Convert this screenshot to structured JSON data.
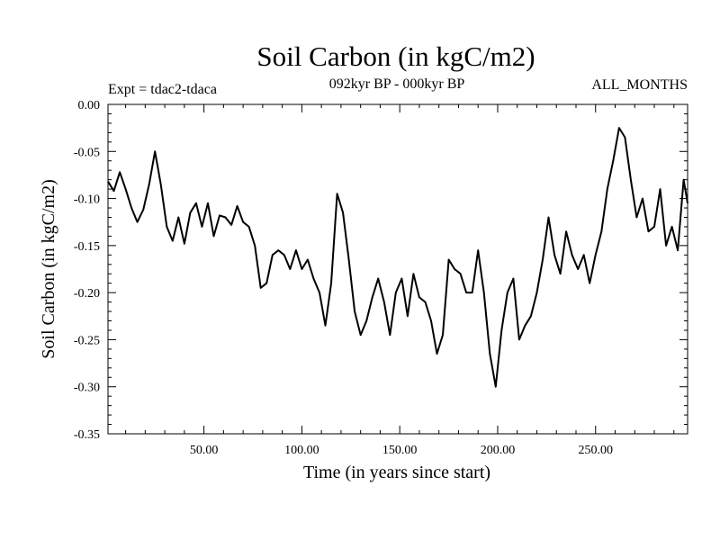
{
  "chart_data": {
    "type": "line",
    "title": "Soil Carbon (in kgC/m2)",
    "subtitle": "092kyr BP - 000kyr BP",
    "left_note": "Expt = tdac2-tdaca",
    "right_note": "ALL_MONTHS",
    "xlabel": "Time (in years since start)",
    "ylabel": "Soil Carbon (in kgC/m2)",
    "xlim": [
      1,
      297
    ],
    "ylim": [
      -0.35,
      0.0
    ],
    "x_ticks": [
      50,
      100,
      150,
      200,
      250
    ],
    "x_tick_labels": [
      "50.00",
      "100.00",
      "150.00",
      "200.00",
      "250.00"
    ],
    "y_ticks": [
      0.0,
      -0.05,
      -0.1,
      -0.15,
      -0.2,
      -0.25,
      -0.3,
      -0.35
    ],
    "y_tick_labels": [
      "0.00",
      "-0.05",
      "-0.10",
      "-0.15",
      "-0.20",
      "-0.25",
      "-0.30",
      "-0.35"
    ],
    "grid": false,
    "legend": "none",
    "color": "#000000",
    "series": [
      {
        "name": "tdac2-tdaca",
        "x": [
          1,
          4,
          7,
          10,
          13,
          16,
          19,
          22,
          25,
          28,
          31,
          34,
          37,
          40,
          43,
          46,
          49,
          52,
          55,
          58,
          61,
          64,
          67,
          70,
          73,
          76,
          79,
          82,
          85,
          88,
          91,
          94,
          97,
          100,
          103,
          106,
          109,
          112,
          115,
          118,
          121,
          124,
          127,
          130,
          133,
          136,
          139,
          142,
          145,
          148,
          151,
          154,
          157,
          160,
          163,
          166,
          169,
          172,
          175,
          178,
          181,
          184,
          187,
          190,
          193,
          196,
          199,
          202,
          205,
          208,
          211,
          214,
          217,
          220,
          223,
          226,
          229,
          232,
          235,
          238,
          241,
          244,
          247,
          250,
          253,
          256,
          259,
          262,
          265,
          268,
          271,
          274,
          277,
          280,
          283,
          286,
          289,
          292,
          295,
          297
        ],
        "values": [
          -0.082,
          -0.092,
          -0.072,
          -0.09,
          -0.11,
          -0.125,
          -0.112,
          -0.085,
          -0.05,
          -0.085,
          -0.13,
          -0.145,
          -0.12,
          -0.148,
          -0.115,
          -0.105,
          -0.13,
          -0.105,
          -0.14,
          -0.118,
          -0.12,
          -0.128,
          -0.108,
          -0.125,
          -0.13,
          -0.15,
          -0.195,
          -0.19,
          -0.16,
          -0.155,
          -0.16,
          -0.175,
          -0.155,
          -0.175,
          -0.165,
          -0.185,
          -0.2,
          -0.235,
          -0.19,
          -0.095,
          -0.115,
          -0.165,
          -0.22,
          -0.245,
          -0.23,
          -0.205,
          -0.185,
          -0.21,
          -0.245,
          -0.2,
          -0.185,
          -0.225,
          -0.18,
          -0.205,
          -0.21,
          -0.23,
          -0.265,
          -0.245,
          -0.165,
          -0.175,
          -0.18,
          -0.2,
          -0.2,
          -0.155,
          -0.2,
          -0.265,
          -0.3,
          -0.24,
          -0.2,
          -0.185,
          -0.25,
          -0.235,
          -0.225,
          -0.2,
          -0.165,
          -0.12,
          -0.16,
          -0.18,
          -0.135,
          -0.16,
          -0.175,
          -0.16,
          -0.19,
          -0.16,
          -0.135,
          -0.09,
          -0.06,
          -0.025,
          -0.035,
          -0.08,
          -0.12,
          -0.1,
          -0.135,
          -0.13,
          -0.09,
          -0.15,
          -0.13,
          -0.155,
          -0.08,
          -0.105
        ]
      }
    ]
  }
}
